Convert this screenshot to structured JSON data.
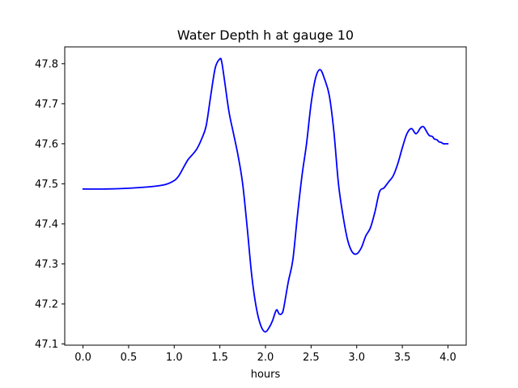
{
  "chart_data": {
    "type": "line",
    "title": "Water Depth h at gauge 10",
    "xlabel": "hours",
    "ylabel": "",
    "xlim": [
      -0.2,
      4.2
    ],
    "ylim": [
      47.097,
      47.842
    ],
    "grid": false,
    "legend": "none",
    "x_ticks": [
      0.0,
      0.5,
      1.0,
      1.5,
      2.0,
      2.5,
      3.0,
      3.5,
      4.0
    ],
    "x_tick_labels": [
      "0.0",
      "0.5",
      "1.0",
      "1.5",
      "2.0",
      "2.5",
      "3.0",
      "3.5",
      "4.0"
    ],
    "y_ticks": [
      47.1,
      47.2,
      47.3,
      47.4,
      47.5,
      47.6,
      47.7,
      47.8
    ],
    "y_tick_labels": [
      "47.1",
      "47.2",
      "47.3",
      "47.4",
      "47.5",
      "47.6",
      "47.7",
      "47.8"
    ],
    "colors": {
      "series": "#0000ff",
      "axes": "#000000"
    },
    "series": [
      {
        "x": [
          0.0,
          0.25,
          0.5,
          0.75,
          0.9,
          1.0,
          1.05,
          1.1,
          1.15,
          1.2,
          1.25,
          1.3,
          1.35,
          1.4,
          1.45,
          1.5,
          1.52,
          1.55,
          1.6,
          1.65,
          1.7,
          1.75,
          1.8,
          1.85,
          1.9,
          1.95,
          2.0,
          2.05,
          2.08,
          2.12,
          2.15,
          2.18,
          2.2,
          2.25,
          2.3,
          2.35,
          2.4,
          2.45,
          2.5,
          2.55,
          2.6,
          2.65,
          2.7,
          2.75,
          2.8,
          2.85,
          2.9,
          2.95,
          3.0,
          3.05,
          3.1,
          3.15,
          3.2,
          3.25,
          3.3,
          3.35,
          3.4,
          3.45,
          3.5,
          3.55,
          3.6,
          3.65,
          3.7,
          3.73,
          3.75,
          3.78,
          3.8,
          3.83,
          3.85,
          3.88,
          3.9,
          3.93,
          3.95,
          3.98,
          4.0
        ],
        "y": [
          47.487,
          47.487,
          47.489,
          47.493,
          47.498,
          47.508,
          47.52,
          47.54,
          47.56,
          47.573,
          47.588,
          47.612,
          47.645,
          47.72,
          47.79,
          47.812,
          47.805,
          47.76,
          47.68,
          47.625,
          47.57,
          47.5,
          47.39,
          47.27,
          47.19,
          47.145,
          47.13,
          47.145,
          47.16,
          47.185,
          47.175,
          47.176,
          47.19,
          47.255,
          47.31,
          47.42,
          47.52,
          47.6,
          47.7,
          47.765,
          47.785,
          47.76,
          47.72,
          47.63,
          47.5,
          47.42,
          47.36,
          47.33,
          47.325,
          47.34,
          47.37,
          47.39,
          47.43,
          47.48,
          47.49,
          47.505,
          47.52,
          47.55,
          47.59,
          47.625,
          47.638,
          47.625,
          47.64,
          47.643,
          47.637,
          47.625,
          47.62,
          47.618,
          47.612,
          47.61,
          47.605,
          47.603,
          47.6,
          47.6,
          47.6
        ]
      }
    ]
  }
}
